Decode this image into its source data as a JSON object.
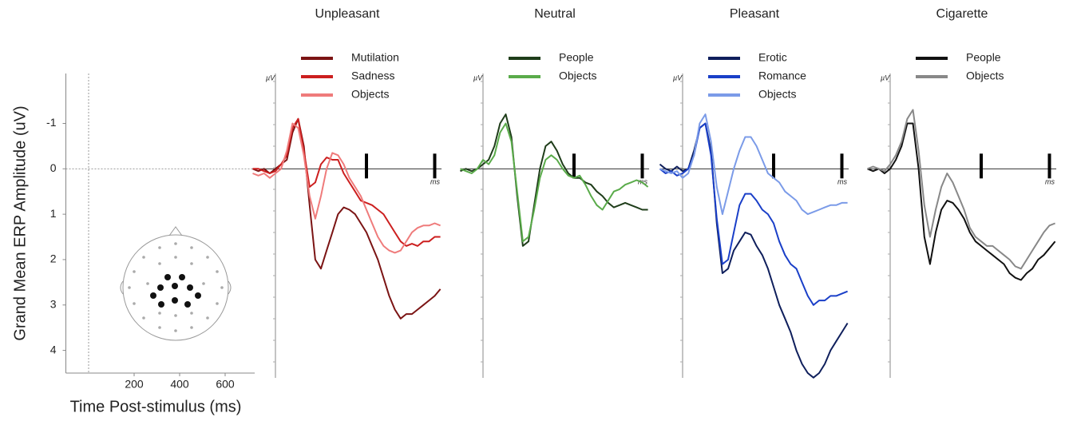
{
  "chart_data": [
    {
      "type": "axes",
      "ylabel": "Grand Mean ERP Amplitude (uV)",
      "xlabel": "Time Post-stimulus (ms)",
      "xlim": [
        -100,
        730
      ],
      "ylim": [
        -2.1,
        4.5
      ],
      "y_inverted": true,
      "yticks": [
        -1,
        0,
        1,
        2,
        3,
        4
      ],
      "xticks": [
        200,
        400,
        600
      ]
    },
    {
      "type": "line",
      "title": "Unpleasant",
      "y_unit": "µV",
      "x_unit": "ms",
      "xlim": [
        -100,
        730
      ],
      "ylim": [
        -2.1,
        4.5
      ],
      "y_inverted": true,
      "markers": [
        400,
        700
      ],
      "x": [
        -100,
        -75,
        -50,
        -25,
        0,
        25,
        50,
        75,
        100,
        125,
        150,
        175,
        200,
        225,
        250,
        275,
        300,
        325,
        350,
        375,
        400,
        425,
        450,
        475,
        500,
        525,
        550,
        575,
        600,
        625,
        650,
        675,
        700,
        725
      ],
      "series": [
        {
          "name": "Mutilation",
          "color": "#7b1414",
          "values": [
            0,
            0.05,
            0,
            0.1,
            0,
            -0.1,
            -0.2,
            -0.8,
            -1.1,
            -0.5,
            0.8,
            2.0,
            2.2,
            1.8,
            1.4,
            1.0,
            0.85,
            0.9,
            1.0,
            1.2,
            1.4,
            1.7,
            2.0,
            2.4,
            2.8,
            3.1,
            3.3,
            3.2,
            3.2,
            3.1,
            3.0,
            2.9,
            2.8,
            2.65
          ]
        },
        {
          "name": "Sadness",
          "color": "#cc1f1f",
          "values": [
            0,
            0,
            0.05,
            0.1,
            0.05,
            -0.1,
            -0.3,
            -0.9,
            -1.1,
            -0.4,
            0.4,
            0.3,
            -0.1,
            -0.25,
            -0.2,
            -0.2,
            0.1,
            0.3,
            0.5,
            0.7,
            0.75,
            0.8,
            0.9,
            1.0,
            1.2,
            1.4,
            1.6,
            1.7,
            1.65,
            1.7,
            1.6,
            1.6,
            1.5,
            1.5
          ]
        },
        {
          "name": "Objects",
          "color": "#ef7b7b",
          "values": [
            0.1,
            0.15,
            0.1,
            0.2,
            0.1,
            0,
            -0.4,
            -1.0,
            -0.9,
            -0.3,
            0.6,
            1.1,
            0.6,
            0.0,
            -0.35,
            -0.3,
            -0.1,
            0.2,
            0.4,
            0.6,
            0.9,
            1.2,
            1.5,
            1.7,
            1.8,
            1.85,
            1.8,
            1.6,
            1.4,
            1.3,
            1.25,
            1.25,
            1.2,
            1.25
          ]
        }
      ]
    },
    {
      "type": "line",
      "title": "Neutral",
      "y_unit": "µV",
      "x_unit": "ms",
      "xlim": [
        -100,
        730
      ],
      "ylim": [
        -2.1,
        4.5
      ],
      "y_inverted": true,
      "markers": [
        400,
        700
      ],
      "x": [
        -100,
        -75,
        -50,
        -25,
        0,
        25,
        50,
        75,
        100,
        125,
        150,
        175,
        200,
        225,
        250,
        275,
        300,
        325,
        350,
        375,
        400,
        425,
        450,
        475,
        500,
        525,
        550,
        575,
        600,
        625,
        650,
        675,
        700,
        725
      ],
      "series": [
        {
          "name": "People",
          "color": "#1f3d1a",
          "values": [
            0.05,
            0,
            0.05,
            0,
            -0.1,
            -0.2,
            -0.5,
            -1.0,
            -1.2,
            -0.7,
            0.6,
            1.7,
            1.6,
            0.8,
            0,
            -0.5,
            -0.6,
            -0.4,
            -0.1,
            0.1,
            0.2,
            0.2,
            0.3,
            0.35,
            0.5,
            0.6,
            0.75,
            0.85,
            0.8,
            0.75,
            0.8,
            0.85,
            0.9,
            0.9
          ]
        },
        {
          "name": "Objects",
          "color": "#5aab4a",
          "values": [
            0,
            0.05,
            0.1,
            0,
            -0.2,
            -0.1,
            -0.3,
            -0.8,
            -1.0,
            -0.6,
            0.5,
            1.6,
            1.5,
            0.9,
            0.2,
            -0.2,
            -0.3,
            -0.2,
            0,
            0.15,
            0.2,
            0.15,
            0.35,
            0.6,
            0.8,
            0.9,
            0.7,
            0.5,
            0.45,
            0.35,
            0.3,
            0.25,
            0.3,
            0.4
          ]
        }
      ]
    },
    {
      "type": "line",
      "title": "Pleasant",
      "y_unit": "µV",
      "x_unit": "ms",
      "xlim": [
        -100,
        730
      ],
      "ylim": [
        -2.1,
        4.5
      ],
      "y_inverted": true,
      "markers": [
        400,
        700
      ],
      "x": [
        -100,
        -75,
        -50,
        -25,
        0,
        25,
        50,
        75,
        100,
        125,
        150,
        175,
        200,
        225,
        250,
        275,
        300,
        325,
        350,
        375,
        400,
        425,
        450,
        475,
        500,
        525,
        550,
        575,
        600,
        625,
        650,
        675,
        700,
        725
      ],
      "series": [
        {
          "name": "Erotic",
          "color": "#0f1f5c",
          "values": [
            -0.1,
            0,
            0.05,
            -0.05,
            0.05,
            0,
            -0.4,
            -0.9,
            -1.0,
            -0.4,
            1.2,
            2.3,
            2.2,
            1.8,
            1.6,
            1.4,
            1.45,
            1.7,
            1.9,
            2.2,
            2.6,
            3.0,
            3.3,
            3.6,
            4.0,
            4.3,
            4.5,
            4.6,
            4.5,
            4.3,
            4.0,
            3.8,
            3.6,
            3.4
          ]
        },
        {
          "name": "Romance",
          "color": "#1a3fc8",
          "values": [
            0,
            0.1,
            0.05,
            0.15,
            0.1,
            0,
            -0.3,
            -0.9,
            -1.0,
            -0.3,
            1.1,
            2.1,
            2.0,
            1.4,
            0.8,
            0.55,
            0.55,
            0.7,
            0.9,
            1.0,
            1.2,
            1.6,
            1.9,
            2.1,
            2.2,
            2.5,
            2.8,
            3.0,
            2.9,
            2.9,
            2.8,
            2.8,
            2.75,
            2.7
          ]
        },
        {
          "name": "Objects",
          "color": "#7b9be8",
          "values": [
            0,
            0.05,
            0.1,
            0.05,
            0.2,
            0.1,
            -0.3,
            -1.0,
            -1.2,
            -0.6,
            0.4,
            1.0,
            0.5,
            0,
            -0.4,
            -0.7,
            -0.7,
            -0.5,
            -0.2,
            0.1,
            0.2,
            0.3,
            0.5,
            0.6,
            0.7,
            0.9,
            1.0,
            0.95,
            0.9,
            0.85,
            0.8,
            0.8,
            0.75,
            0.75
          ]
        }
      ]
    },
    {
      "type": "line",
      "title": "Cigarette",
      "y_unit": "µV",
      "x_unit": "ms",
      "xlim": [
        -100,
        730
      ],
      "ylim": [
        -2.1,
        4.5
      ],
      "y_inverted": true,
      "markers": [
        400,
        700
      ],
      "x": [
        -100,
        -75,
        -50,
        -25,
        0,
        25,
        50,
        75,
        100,
        125,
        150,
        175,
        200,
        225,
        250,
        275,
        300,
        325,
        350,
        375,
        400,
        425,
        450,
        475,
        500,
        525,
        550,
        575,
        600,
        625,
        650,
        675,
        700,
        725
      ],
      "series": [
        {
          "name": "People",
          "color": "#111111",
          "values": [
            0,
            0.05,
            0,
            0.1,
            0,
            -0.2,
            -0.5,
            -1.0,
            -1.0,
            0,
            1.5,
            2.1,
            1.4,
            0.9,
            0.7,
            0.75,
            0.9,
            1.1,
            1.4,
            1.6,
            1.7,
            1.8,
            1.9,
            2.0,
            2.1,
            2.3,
            2.4,
            2.45,
            2.3,
            2.2,
            2.0,
            1.9,
            1.75,
            1.6
          ]
        },
        {
          "name": "Objects",
          "color": "#888888",
          "values": [
            0,
            -0.05,
            0,
            0.05,
            -0.1,
            -0.3,
            -0.6,
            -1.1,
            -1.3,
            -0.4,
            0.8,
            1.5,
            0.9,
            0.4,
            0.1,
            0.3,
            0.6,
            0.9,
            1.3,
            1.5,
            1.6,
            1.7,
            1.7,
            1.8,
            1.9,
            2.0,
            2.15,
            2.2,
            2.0,
            1.8,
            1.6,
            1.4,
            1.25,
            1.2
          ]
        }
      ]
    }
  ]
}
